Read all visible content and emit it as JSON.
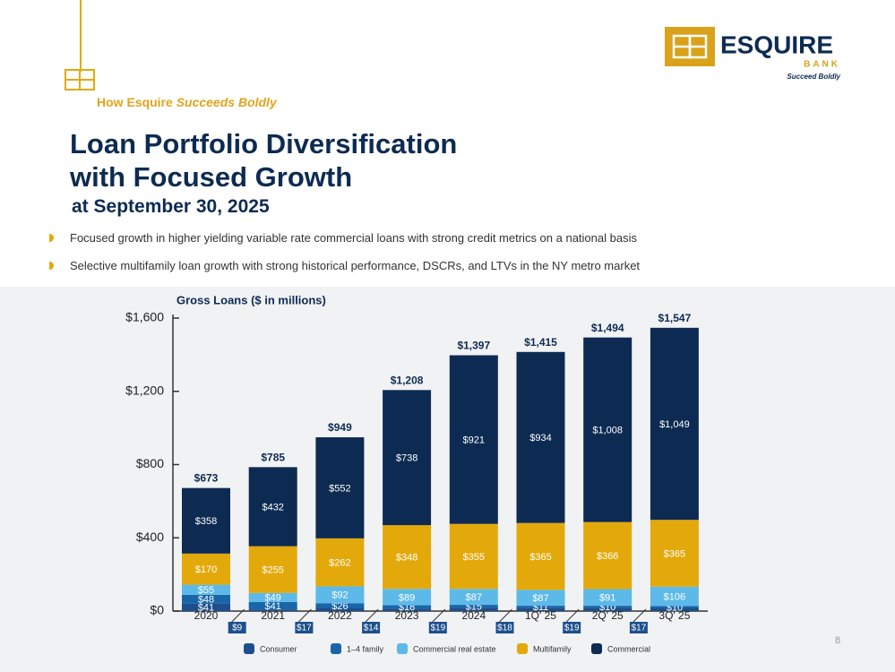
{
  "header": {
    "tagline_prefix": "How Esquire",
    "tagline_emphasis": "Succeeds Boldly",
    "title_line1": "Loan Portfolio Diversification",
    "title_line2": "with Focused Growth",
    "subtitle": "at September 30, 2025"
  },
  "logo": {
    "name": "ESQUIRE",
    "sub": "BANK",
    "slogan": "Succeed Boldly"
  },
  "bullets": [
    "Focused growth in higher yielding variable rate commercial loans with strong credit metrics on a national basis",
    "Selective multifamily loan growth with strong historical performance, DSCRs, and LTVs in the NY metro market"
  ],
  "page_number": "8",
  "chart_data": {
    "type": "stacked_bar",
    "title": "Gross Loans ($ in millions)",
    "categories": [
      "2020",
      "2021",
      "2022",
      "2023",
      "2024",
      "1Q' 25",
      "2Q' 25",
      "3Q' 25"
    ],
    "series": [
      {
        "name": "Consumer",
        "color": "#1c4f8c",
        "values": [
          41,
          9,
          17,
          14,
          19,
          18,
          19,
          17
        ],
        "value_labels": [
          "$41",
          "$9",
          "$17",
          "$14",
          "$19",
          "$18",
          "$19",
          "$17"
        ]
      },
      {
        "name": "1–4 family",
        "color": "#1866a8",
        "values": [
          48,
          41,
          26,
          18,
          15,
          11,
          10,
          10
        ],
        "value_labels": [
          "$48",
          "$41",
          "$26",
          "$18",
          "$15",
          "$11",
          "$10",
          "$10"
        ]
      },
      {
        "name": "Commercial real estate",
        "color": "#5db9e8",
        "values": [
          55,
          49,
          92,
          89,
          87,
          87,
          91,
          106
        ],
        "value_labels": [
          "$55",
          "$49",
          "$92",
          "$89",
          "$87",
          "$87",
          "$91",
          "$106"
        ]
      },
      {
        "name": "Multifamily",
        "color": "#e3a90b",
        "values": [
          170,
          255,
          262,
          348,
          355,
          365,
          366,
          365
        ],
        "value_labels": [
          "$170",
          "$255",
          "$262",
          "$348",
          "$355",
          "$365",
          "$366",
          "$365"
        ]
      },
      {
        "name": "Commercial",
        "color": "#0d2b52",
        "values": [
          358,
          432,
          552,
          738,
          921,
          934,
          1008,
          1049
        ],
        "value_labels": [
          "$358",
          "$432",
          "$552",
          "$738",
          "$921",
          "$934",
          "$1,008",
          "$1,049"
        ]
      }
    ],
    "totals": [
      673,
      785,
      949,
      1208,
      1397,
      1415,
      1494,
      1547
    ],
    "total_labels": [
      "$673",
      "$785",
      "$949",
      "$1,208",
      "$1,397",
      "$1,415",
      "$1,494",
      "$1,547"
    ],
    "ylim": [
      0,
      1600
    ],
    "yticks": [
      {
        "value": 0,
        "label": "$0"
      },
      {
        "value": 400,
        "label": "$400"
      },
      {
        "value": 800,
        "label": "$800"
      },
      {
        "value": 1200,
        "label": "$1,200"
      },
      {
        "value": 1600,
        "label": "$1,600"
      }
    ],
    "legend": "bottom"
  }
}
